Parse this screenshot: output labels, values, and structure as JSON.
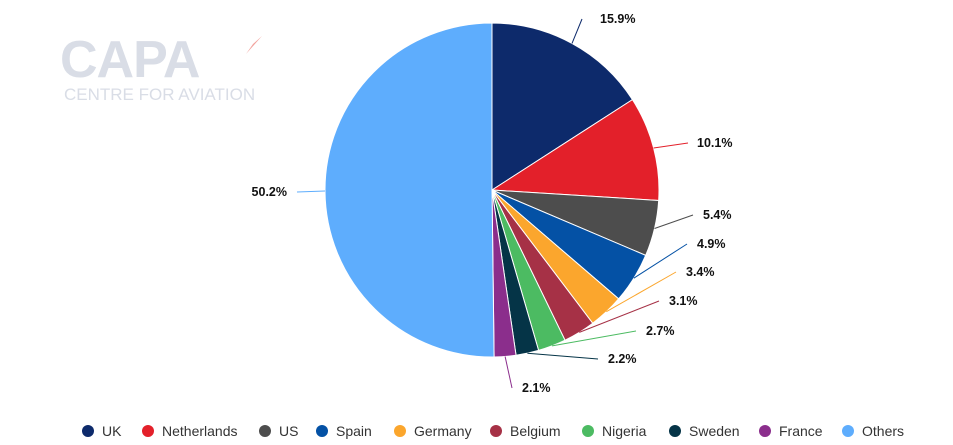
{
  "logo": {
    "brand": "CAPA",
    "tagline": "CENTRE FOR AVIATION"
  },
  "chart_data": {
    "type": "pie",
    "title": "",
    "slices": [
      {
        "name": "UK",
        "value": 15.9,
        "label": "15.9%",
        "color": "#0d2a6b"
      },
      {
        "name": "Netherlands",
        "value": 10.1,
        "label": "10.1%",
        "color": "#e3202a"
      },
      {
        "name": "US",
        "value": 5.4,
        "label": "5.4%",
        "color": "#4d4d4d"
      },
      {
        "name": "Spain",
        "value": 4.9,
        "label": "4.9%",
        "color": "#0451a5"
      },
      {
        "name": "Germany",
        "value": 3.4,
        "label": "3.4%",
        "color": "#fba62d"
      },
      {
        "name": "Belgium",
        "value": 3.1,
        "label": "3.1%",
        "color": "#a63146"
      },
      {
        "name": "Nigeria",
        "value": 2.7,
        "label": "2.7%",
        "color": "#4cbb62"
      },
      {
        "name": "Sweden",
        "value": 2.2,
        "label": "2.2%",
        "color": "#053447"
      },
      {
        "name": "France",
        "value": 2.1,
        "label": "2.1%",
        "color": "#8b2e8c"
      },
      {
        "name": "Others",
        "value": 50.2,
        "label": "50.2%",
        "color": "#5eadfd"
      }
    ],
    "legend_position": "bottom"
  }
}
